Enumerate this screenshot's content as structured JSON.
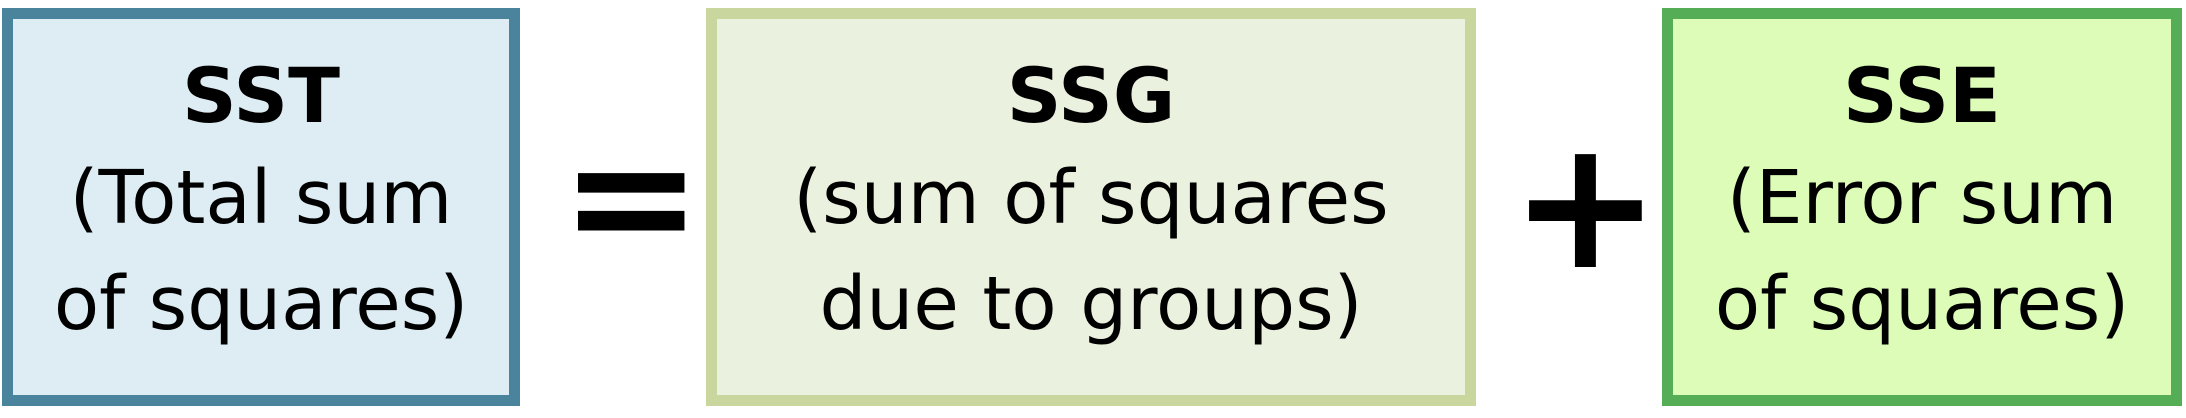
{
  "equation": {
    "terms": [
      {
        "abbr": "SST",
        "description": "(Total sum\nof squares)"
      },
      {
        "abbr": "SSG",
        "description": "(sum of squares\ndue to groups)"
      },
      {
        "abbr": "SSE",
        "description": "(Error sum\nof squares)"
      }
    ],
    "operators": [
      "=",
      "+"
    ]
  },
  "colors": {
    "sst_fill": "#deedf3",
    "sst_border": "#4a849c",
    "ssg_fill": "#ebf1df",
    "ssg_border": "#c9d79f",
    "sse_fill": "#dcfcb8",
    "sse_border": "#55ad55"
  }
}
